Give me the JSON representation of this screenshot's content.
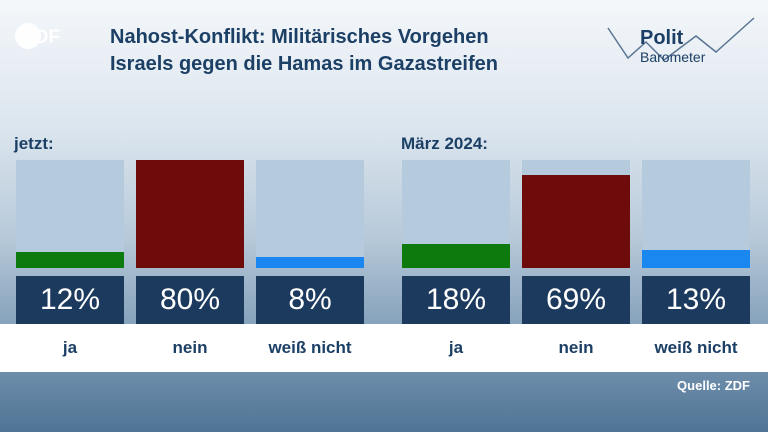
{
  "brand": {
    "zdf_logo": "ZDF",
    "polit_line1": "Polit",
    "polit_line2": "Barometer"
  },
  "title": {
    "line1": "Nahost-Konflikt: Militärisches Vorgehen",
    "line2": "Israels gegen die Hamas im Gazastreifen"
  },
  "colors": {
    "ja": "#0c7a0c",
    "nein": "#6e0c0c",
    "weiss_nicht": "#1a86f0",
    "empty": "#b6cade"
  },
  "chart_data": [
    {
      "type": "bar",
      "group": "jetzt:",
      "categories": [
        "ja",
        "nein",
        "weiß nicht"
      ],
      "values": [
        12,
        80,
        8
      ],
      "value_labels": [
        "12%",
        "80%",
        "8%"
      ],
      "ylim": [
        0,
        80
      ]
    },
    {
      "type": "bar",
      "group": "März 2024:",
      "categories": [
        "ja",
        "nein",
        "weiß nicht"
      ],
      "values": [
        18,
        69,
        13
      ],
      "value_labels": [
        "18%",
        "69%",
        "13%"
      ],
      "ylim": [
        0,
        80
      ]
    }
  ],
  "source": "Quelle: ZDF"
}
